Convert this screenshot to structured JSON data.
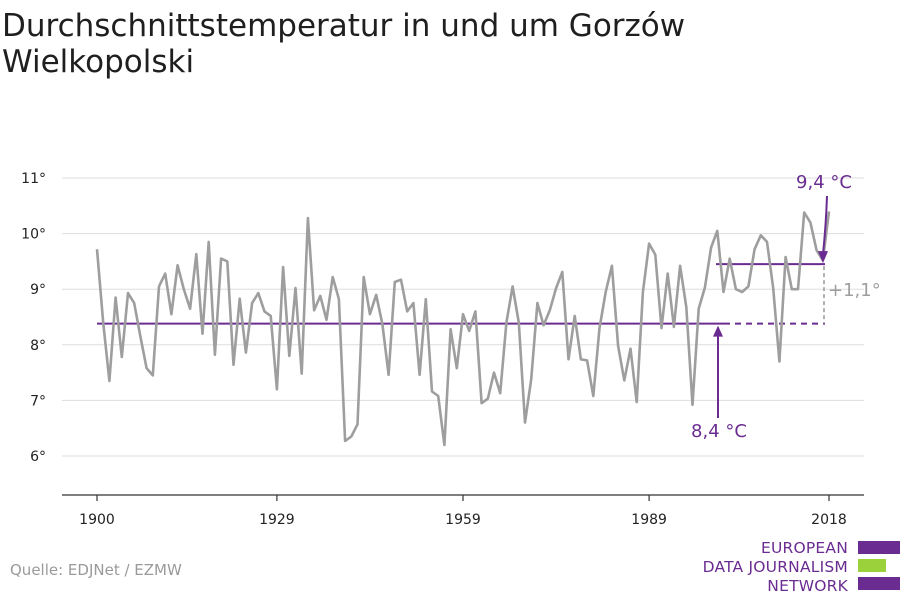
{
  "title": "Durchschnittstemperatur in und um Gorzów Wielkopolski",
  "source": "Quelle: EDJNet / EZMW",
  "logo": {
    "lines": [
      "EUROPEAN",
      "DATA JOURNALISM",
      "NETWORK"
    ],
    "colors": {
      "text": "#6b2c91",
      "bar_purple": "#6b2c91",
      "bar_green": "#9bd13b"
    }
  },
  "colors": {
    "series": "#9e9e9e",
    "average": "#6b2c91",
    "diff": "#9e9e9e",
    "grid": "#dddddd"
  },
  "chart_data": {
    "type": "line",
    "title": "Durchschnittstemperatur in und um Gorzów Wielkopolski",
    "xlabel": "",
    "ylabel": "",
    "xlim": [
      1900,
      2018
    ],
    "ylim": [
      5.6,
      11.3
    ],
    "x_ticks": [
      1900,
      1929,
      1959,
      1989,
      2018
    ],
    "y_ticks": [
      6,
      7,
      8,
      9,
      10,
      11
    ],
    "y_tick_labels": [
      "6°",
      "7°",
      "8°",
      "9°",
      "10°",
      "11°"
    ],
    "grid": true,
    "series": [
      {
        "x": [
          1900,
          1901,
          1902,
          1903,
          1904,
          1905,
          1906,
          1907,
          1908,
          1909,
          1910,
          1911,
          1912,
          1913,
          1914,
          1915,
          1916,
          1917,
          1918,
          1919,
          1920,
          1921,
          1922,
          1923,
          1924,
          1925,
          1926,
          1927,
          1928,
          1929,
          1930,
          1931,
          1932,
          1933,
          1934,
          1935,
          1936,
          1937,
          1938,
          1939,
          1940,
          1941,
          1942,
          1943,
          1944,
          1945,
          1946,
          1947,
          1948,
          1949,
          1950,
          1951,
          1952,
          1953,
          1954,
          1955,
          1956,
          1957,
          1958,
          1959,
          1960,
          1961,
          1962,
          1963,
          1964,
          1965,
          1966,
          1967,
          1968,
          1969,
          1970,
          1971,
          1972,
          1973,
          1974,
          1975,
          1976,
          1977,
          1978,
          1979,
          1980,
          1981,
          1982,
          1983,
          1984,
          1985,
          1986,
          1987,
          1988,
          1989,
          1990,
          1991,
          1992,
          1993,
          1994,
          1995,
          1996,
          1997,
          1998,
          1999,
          2000,
          2001,
          2002,
          2003,
          2004,
          2005,
          2006,
          2007,
          2008,
          2009,
          2010,
          2011,
          2012,
          2013,
          2014,
          2015,
          2016,
          2017,
          2018
        ],
        "values": [
          9.72,
          8.4,
          7.35,
          8.85,
          7.78,
          8.93,
          8.75,
          8.15,
          7.58,
          7.45,
          9.05,
          9.28,
          8.55,
          9.43,
          9.0,
          8.65,
          9.63,
          8.2,
          9.85,
          7.82,
          9.55,
          9.5,
          7.64,
          8.83,
          7.86,
          8.75,
          8.93,
          8.6,
          8.52,
          7.2,
          9.4,
          7.8,
          9.02,
          7.48,
          10.28,
          8.62,
          8.88,
          8.45,
          9.22,
          8.82,
          6.27,
          6.35,
          6.57,
          9.22,
          8.55,
          8.9,
          8.37,
          7.46,
          9.13,
          9.17,
          8.6,
          8.75,
          7.46,
          8.82,
          7.16,
          7.08,
          6.2,
          8.28,
          7.58,
          8.55,
          8.25,
          8.6,
          6.95,
          7.03,
          7.5,
          7.13,
          8.4,
          9.05,
          8.4,
          6.6,
          7.38,
          8.75,
          8.35,
          8.62,
          9.02,
          9.31,
          7.74,
          8.52,
          7.74,
          7.72,
          7.08,
          8.3,
          8.95,
          9.42,
          7.98,
          7.36,
          7.93,
          6.97,
          8.95,
          9.82,
          9.62,
          8.3,
          9.28,
          8.32,
          9.42,
          8.68,
          6.92,
          8.65,
          9.03,
          9.75,
          10.05,
          8.95,
          9.55,
          9.0,
          8.95,
          9.05,
          9.72,
          9.97,
          9.85,
          9.02,
          7.7,
          9.58,
          9.0,
          9.0,
          10.38,
          10.2,
          9.7,
          9.52,
          10.4
        ]
      }
    ],
    "reference_lines": [
      {
        "value": 8.38,
        "label": "8,4 °C"
      },
      {
        "value": 9.45,
        "label": "9,4 °C"
      }
    ],
    "difference_label": "+1,1°"
  }
}
